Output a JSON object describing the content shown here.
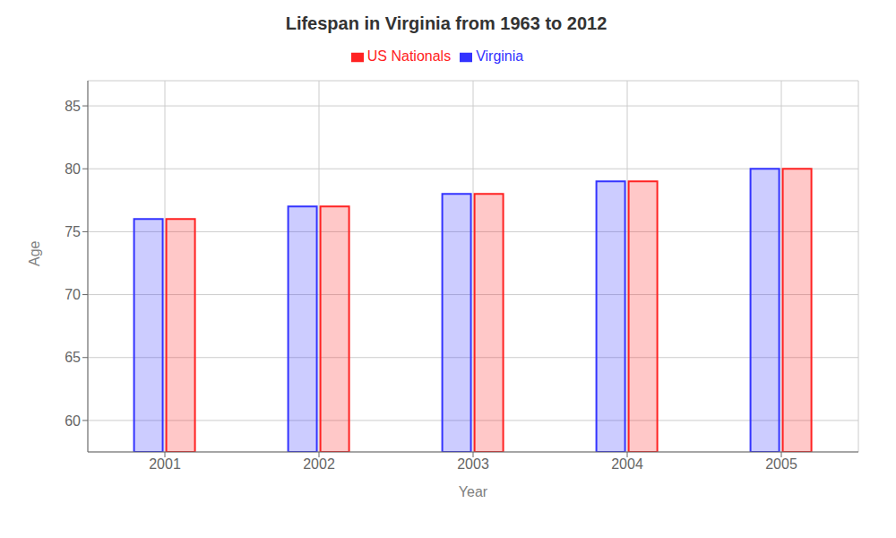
{
  "chart_data": {
    "type": "bar",
    "title": "Lifespan in Virginia from 1963 to 2012",
    "x_label": "Year",
    "y_label": "Age",
    "categories": [
      "2001",
      "2002",
      "2003",
      "2004",
      "2005"
    ],
    "series": [
      {
        "name": "Virginia",
        "color": "#3333FF",
        "values": [
          76,
          77,
          78,
          79,
          80
        ]
      },
      {
        "name": "US Nationals",
        "color": "#FF2222",
        "values": [
          76,
          77,
          78,
          79,
          80
        ]
      }
    ],
    "ylim": [
      57.5,
      87
    ],
    "yticks": [
      60,
      65,
      70,
      75,
      80,
      85
    ],
    "grid": true,
    "legend": "top"
  }
}
